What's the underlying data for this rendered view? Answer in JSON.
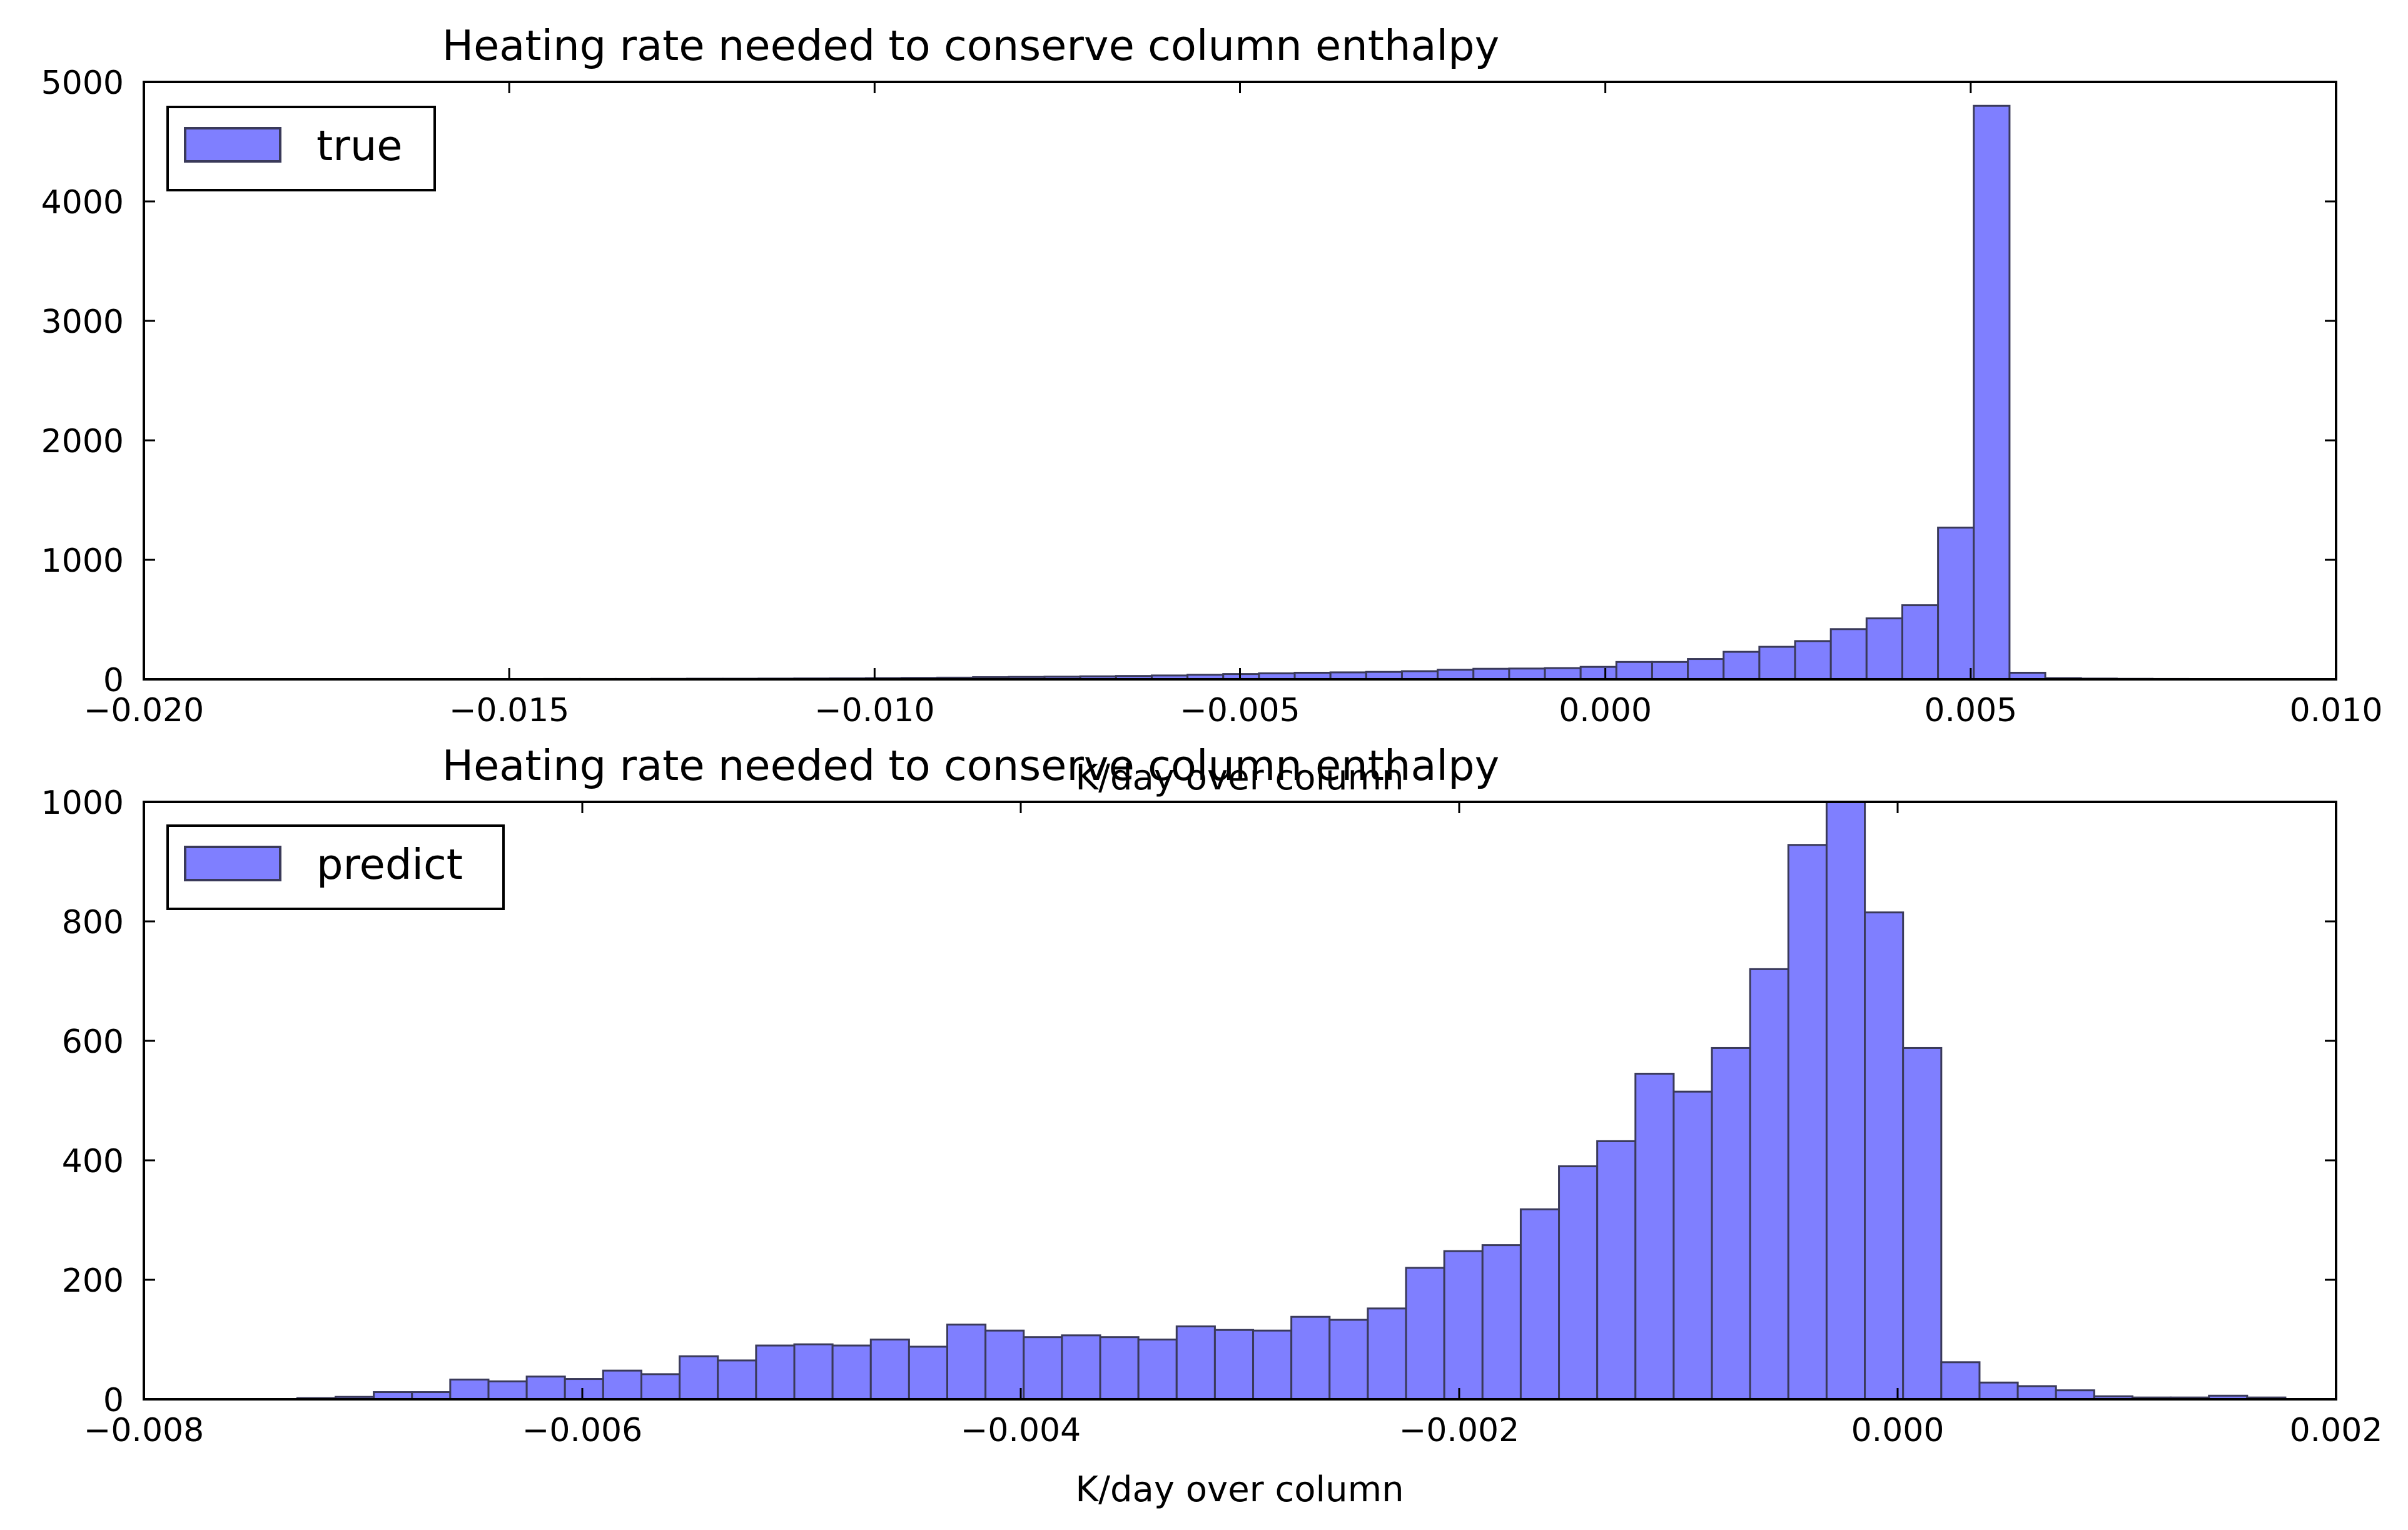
{
  "chart_data": [
    {
      "type": "bar",
      "title": "Heating rate needed to conserve column enthalpy",
      "xlabel": "K/day over column",
      "ylabel": "",
      "xlim": [
        -0.02,
        0.01
      ],
      "ylim": [
        0,
        5000
      ],
      "grid": false,
      "legend_position": "top-left",
      "color": "#7f7fff",
      "edge_color": "#3a3a5a",
      "series": [
        {
          "name": "true",
          "values": [
            2,
            2,
            3,
            3,
            3,
            4,
            5,
            5,
            6,
            7,
            8,
            10,
            12,
            14,
            18,
            20,
            22,
            25,
            28,
            32,
            38,
            44,
            50,
            55,
            58,
            62,
            68,
            80,
            88,
            90,
            94,
            104,
            145,
            145,
            170,
            230,
            272,
            320,
            420,
            510,
            620,
            1270,
            4800,
            55,
            10,
            6,
            4,
            3,
            2,
            2
          ]
        }
      ],
      "bin_edges_start": -0.0155,
      "bin_width": 0.0004891,
      "xticks": [
        -0.02,
        -0.015,
        -0.01,
        -0.005,
        0.0,
        0.005,
        0.01
      ],
      "xtick_labels": [
        "−0.020",
        "−0.015",
        "−0.010",
        "−0.005",
        "0.000",
        "0.005",
        "0.010"
      ],
      "yticks": [
        0,
        1000,
        2000,
        3000,
        4000,
        5000
      ],
      "ytick_labels": [
        "0",
        "1000",
        "2000",
        "3000",
        "4000",
        "5000"
      ]
    },
    {
      "type": "bar",
      "title": "Heating rate needed to conserve column enthalpy",
      "xlabel": "K/day over column",
      "ylabel": "",
      "xlim": [
        -0.008,
        0.002
      ],
      "ylim": [
        0,
        1000
      ],
      "grid": false,
      "legend_position": "top-left",
      "color": "#7f7fff",
      "edge_color": "#3a3a5a",
      "series": [
        {
          "name": "predict",
          "values": [
            2,
            4,
            12,
            12,
            33,
            30,
            38,
            34,
            48,
            42,
            72,
            65,
            90,
            92,
            90,
            100,
            88,
            125,
            115,
            104,
            107,
            104,
            100,
            122,
            116,
            115,
            138,
            133,
            152,
            220,
            248,
            258,
            318,
            390,
            432,
            545,
            515,
            588,
            720,
            928,
            1000,
            815,
            588,
            62,
            28,
            22,
            15,
            5,
            3,
            3,
            6,
            3
          ]
        }
      ],
      "bin_edges_start": -0.0073,
      "bin_width": 0.0001744,
      "xticks": [
        -0.008,
        -0.006,
        -0.004,
        -0.002,
        0.0,
        0.002
      ],
      "xtick_labels": [
        "−0.008",
        "−0.006",
        "−0.004",
        "−0.002",
        "0.000",
        "0.002"
      ],
      "yticks": [
        0,
        200,
        400,
        600,
        800,
        1000
      ],
      "ytick_labels": [
        "0",
        "200",
        "400",
        "600",
        "800",
        "1000"
      ]
    }
  ]
}
